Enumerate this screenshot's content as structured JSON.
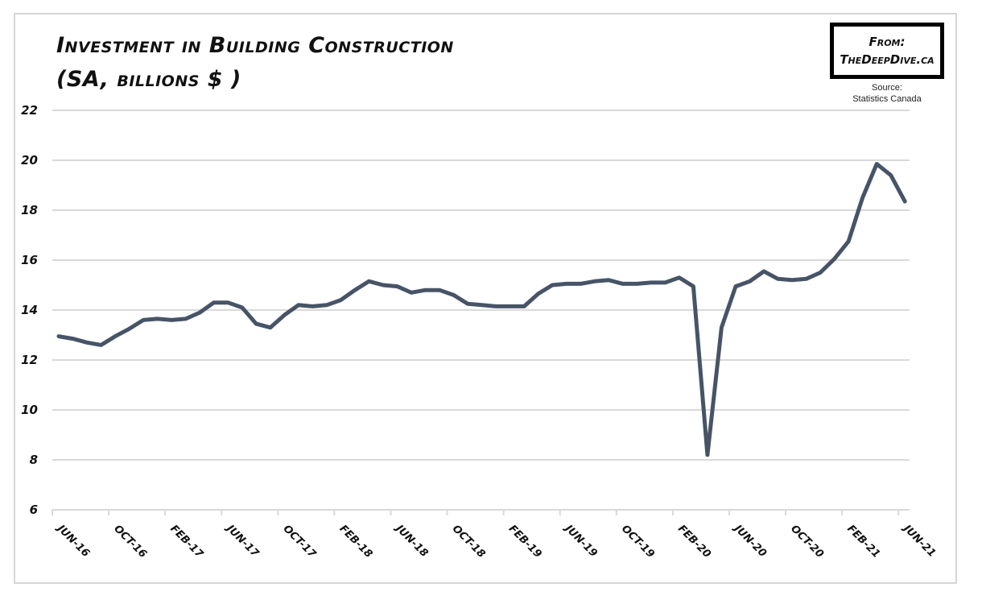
{
  "chart_data": {
    "type": "line",
    "title": "Investment in Building Construction",
    "subtitle": "(SA, billions $ )",
    "xlabel": "",
    "ylabel": "",
    "ylim": [
      6,
      22
    ],
    "yticks": [
      6,
      8,
      10,
      12,
      14,
      16,
      18,
      20,
      22
    ],
    "grid": true,
    "legend": null,
    "xtick_labels": [
      "Jun-16",
      "Oct-16",
      "Feb-17",
      "Jun-17",
      "Oct-17",
      "Feb-18",
      "Jun-18",
      "Oct-18",
      "Feb-19",
      "Jun-19",
      "Oct-19",
      "Feb-20",
      "Jun-20",
      "Oct-20",
      "Feb-21",
      "Jun-21"
    ],
    "series": [
      {
        "name": "Investment in Building Construction",
        "color": "#475467",
        "x": [
          "Jun-16",
          "Jul-16",
          "Aug-16",
          "Sep-16",
          "Oct-16",
          "Nov-16",
          "Dec-16",
          "Jan-17",
          "Feb-17",
          "Mar-17",
          "Apr-17",
          "May-17",
          "Jun-17",
          "Jul-17",
          "Aug-17",
          "Sep-17",
          "Oct-17",
          "Nov-17",
          "Dec-17",
          "Jan-18",
          "Feb-18",
          "Mar-18",
          "Apr-18",
          "May-18",
          "Jun-18",
          "Jul-18",
          "Aug-18",
          "Sep-18",
          "Oct-18",
          "Nov-18",
          "Dec-18",
          "Jan-19",
          "Feb-19",
          "Mar-19",
          "Apr-19",
          "May-19",
          "Jun-19",
          "Jul-19",
          "Aug-19",
          "Sep-19",
          "Oct-19",
          "Nov-19",
          "Dec-19",
          "Jan-20",
          "Feb-20",
          "Mar-20",
          "Apr-20",
          "May-20",
          "Jun-20",
          "Jul-20",
          "Aug-20",
          "Sep-20",
          "Oct-20",
          "Nov-20",
          "Dec-20",
          "Jan-21",
          "Feb-21",
          "Mar-21",
          "Apr-21",
          "May-21",
          "Jun-21"
        ],
        "values": [
          12.95,
          12.85,
          12.7,
          12.6,
          12.95,
          13.25,
          13.6,
          13.65,
          13.6,
          13.65,
          13.9,
          14.3,
          14.3,
          14.1,
          13.45,
          13.3,
          13.8,
          14.2,
          14.15,
          14.2,
          14.4,
          14.8,
          15.15,
          15.0,
          14.95,
          14.7,
          14.8,
          14.8,
          14.6,
          14.25,
          14.2,
          14.15,
          14.15,
          14.15,
          14.65,
          15.0,
          15.05,
          15.05,
          15.15,
          15.2,
          15.05,
          15.05,
          15.1,
          15.1,
          15.3,
          14.95,
          8.2,
          13.3,
          14.95,
          15.15,
          15.55,
          15.25,
          15.2,
          15.25,
          15.5,
          16.05,
          16.75,
          18.5,
          19.85,
          19.4,
          18.35
        ]
      }
    ],
    "branding": {
      "from_label": "From:",
      "site": "TheDeepDive.ca"
    },
    "source": {
      "label": "Source:",
      "name": "Statistics Canada"
    }
  },
  "header": {
    "title_line1": "Investment in Building Construction",
    "title_line2": "(SA, billions $ )"
  },
  "badge": {
    "from": "From:",
    "site": "TheDeepDive.ca"
  },
  "source": {
    "label": "Source:",
    "name": "Statistics Canada"
  },
  "style": {
    "line_color": "#475467",
    "grid_color": "#d9d9d9",
    "frame_color": "#d6d6d6"
  }
}
